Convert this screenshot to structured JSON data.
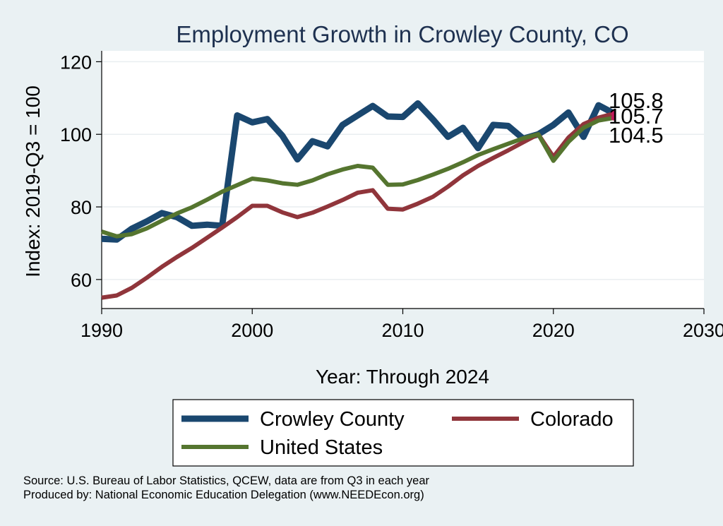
{
  "chart_data": {
    "type": "line",
    "title": "Employment Growth in Crowley County, CO",
    "xlabel": "Year: Through 2024",
    "ylabel": "Index: 2019-Q3 = 100",
    "xlim": [
      1990,
      2030
    ],
    "ylim": [
      52,
      123
    ],
    "x_ticks": [
      1990,
      2000,
      2010,
      2020,
      2030
    ],
    "y_ticks": [
      60,
      80,
      100,
      120
    ],
    "grid": true,
    "legend_position": "bottom",
    "x": [
      1990,
      1991,
      1992,
      1993,
      1994,
      1995,
      1996,
      1997,
      1998,
      1999,
      2000,
      2001,
      2002,
      2003,
      2004,
      2005,
      2006,
      2007,
      2008,
      2009,
      2010,
      2011,
      2012,
      2013,
      2014,
      2015,
      2016,
      2017,
      2018,
      2019,
      2020,
      2021,
      2022,
      2023,
      2024
    ],
    "series": [
      {
        "name": "Crowley  County",
        "color": "#1a476f",
        "values": [
          71.2,
          71.0,
          74.0,
          76.0,
          78.3,
          77.2,
          74.8,
          75.1,
          74.8,
          105.2,
          103.3,
          104.2,
          99.6,
          93.1,
          98.1,
          96.7,
          102.6,
          105.2,
          107.8,
          104.9,
          104.8,
          108.5,
          104.1,
          99.3,
          101.8,
          96.2,
          102.6,
          102.3,
          98.8,
          100.0,
          102.6,
          106.0,
          99.3,
          108.0,
          105.8
        ],
        "end_label": "105.8"
      },
      {
        "name": "Colorado",
        "color": "#90353b",
        "values": [
          55.0,
          55.6,
          57.7,
          60.5,
          63.5,
          66.2,
          68.7,
          71.5,
          74.3,
          77.2,
          80.3,
          80.3,
          78.5,
          77.2,
          78.4,
          80.1,
          81.9,
          83.9,
          84.6,
          79.5,
          79.3,
          80.9,
          82.8,
          85.6,
          88.7,
          91.3,
          93.5,
          95.6,
          97.8,
          100.0,
          93.8,
          99.1,
          102.8,
          104.6,
          105.7
        ],
        "end_label": "105.7"
      },
      {
        "name": "United States",
        "color": "#55752f",
        "values": [
          73.2,
          71.9,
          72.5,
          74.1,
          76.2,
          78.2,
          79.9,
          82.0,
          84.2,
          86.0,
          87.8,
          87.3,
          86.5,
          86.1,
          87.3,
          89.0,
          90.3,
          91.3,
          90.8,
          86.1,
          86.2,
          87.4,
          88.9,
          90.5,
          92.3,
          94.3,
          95.9,
          97.4,
          98.9,
          100.0,
          92.7,
          97.9,
          101.8,
          103.8,
          104.5
        ],
        "end_label": "104.5"
      }
    ],
    "end_marker_color": "#c2185b"
  },
  "footer": {
    "source": "Source: U.S. Bureau of Labor Statistics, QCEW, data are from Q3 in each year",
    "produced": "Produced by: National Economic Education Delegation (www.NEEDEcon.org)"
  }
}
